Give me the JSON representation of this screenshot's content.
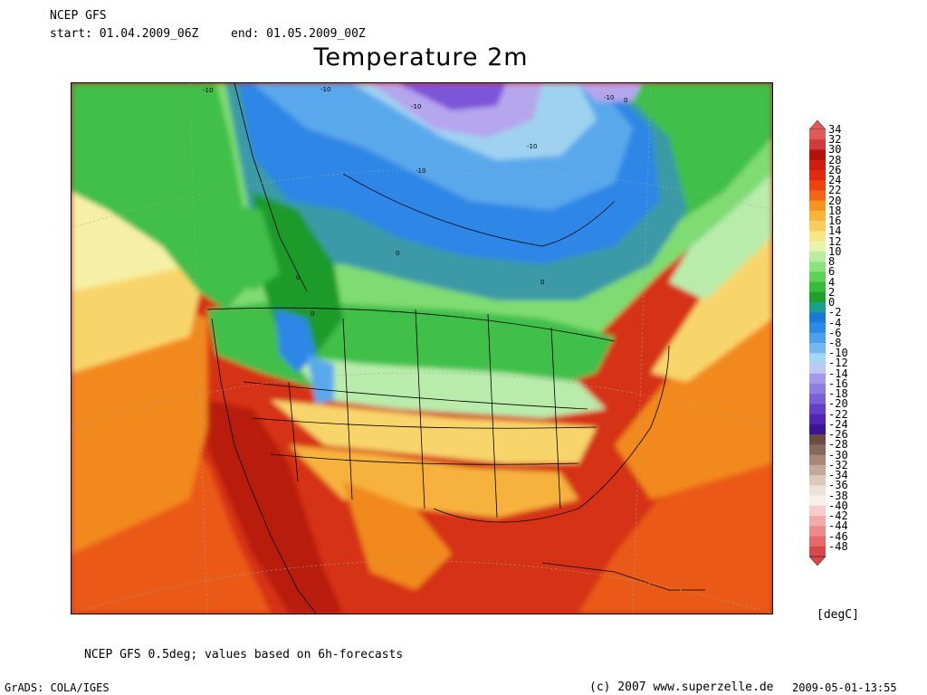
{
  "header": {
    "source": "NCEP GFS",
    "start_label": "start:",
    "start_value": "01.04.2009_06Z",
    "end_label": "end:",
    "end_value": "01.05.2009_00Z"
  },
  "title": "Temperature 2m",
  "map": {
    "contour_labels": [
      "-10",
      "-10",
      "-10",
      "-10",
      "-10",
      "-10",
      "0",
      "0",
      "0",
      "0",
      "0"
    ],
    "colors": {
      "deep_purple": "#7d55d8",
      "light_purple": "#b5a6ee",
      "pale_blue": "#9fd2f0",
      "blue": "#2f86e6",
      "mid_blue": "#5aa8ec",
      "teal": "#3a9aa6",
      "dark_green": "#1e9a2a",
      "green": "#3fbf48",
      "light_green": "#7fdc72",
      "pale_green": "#b9ecaa",
      "pale_yellow": "#f6f0a6",
      "yellow": "#f8d56a",
      "orange_light": "#f6b23c",
      "orange": "#f2891c",
      "red_orange": "#ea5a16",
      "red": "#d63314",
      "dark_red": "#b81d10"
    }
  },
  "legend": {
    "unit": "[degC]",
    "entries": [
      {
        "label": "34",
        "color": "#e05a5a"
      },
      {
        "label": "32",
        "color": "#cf3a3a"
      },
      {
        "label": "30",
        "color": "#b51010"
      },
      {
        "label": "28",
        "color": "#cd1e10"
      },
      {
        "label": "26",
        "color": "#e02a10"
      },
      {
        "label": "24",
        "color": "#ea4410"
      },
      {
        "label": "22",
        "color": "#f26418"
      },
      {
        "label": "20",
        "color": "#f5961c"
      },
      {
        "label": "18",
        "color": "#f7b43c"
      },
      {
        "label": "16",
        "color": "#f8cc5e"
      },
      {
        "label": "14",
        "color": "#f7e686"
      },
      {
        "label": "12",
        "color": "#e6f5a8"
      },
      {
        "label": "10",
        "color": "#b8eea2"
      },
      {
        "label": "8",
        "color": "#8ee27e"
      },
      {
        "label": "6",
        "color": "#5ed158"
      },
      {
        "label": "4",
        "color": "#34bb3c"
      },
      {
        "label": "2",
        "color": "#1ea02a"
      },
      {
        "label": "0",
        "color": "#19a08c"
      },
      {
        "label": "-2",
        "color": "#1c78d8"
      },
      {
        "label": "-4",
        "color": "#2a8ae4"
      },
      {
        "label": "-6",
        "color": "#4aa0ea"
      },
      {
        "label": "-8",
        "color": "#74b8ef"
      },
      {
        "label": "-10",
        "color": "#a4d6f4"
      },
      {
        "label": "-12",
        "color": "#bcc8f2"
      },
      {
        "label": "-14",
        "color": "#a69ae8"
      },
      {
        "label": "-16",
        "color": "#8e7ee0"
      },
      {
        "label": "-18",
        "color": "#7b5fd6"
      },
      {
        "label": "-20",
        "color": "#6440c8"
      },
      {
        "label": "-22",
        "color": "#5226b2"
      },
      {
        "label": "-24",
        "color": "#3c1690"
      },
      {
        "label": "-26",
        "color": "#6a4c44"
      },
      {
        "label": "-28",
        "color": "#88685c"
      },
      {
        "label": "-30",
        "color": "#a88678"
      },
      {
        "label": "-32",
        "color": "#c4a89a"
      },
      {
        "label": "-34",
        "color": "#dcc8bc"
      },
      {
        "label": "-36",
        "color": "#ece2da"
      },
      {
        "label": "-38",
        "color": "#f8f0e8"
      },
      {
        "label": "-40",
        "color": "#f6cccc"
      },
      {
        "label": "-42",
        "color": "#f0aaaa"
      },
      {
        "label": "-44",
        "color": "#ea8a8a"
      },
      {
        "label": "-46",
        "color": "#e26a6a"
      },
      {
        "label": "-48",
        "color": "#d84848"
      }
    ]
  },
  "footer": {
    "note": "NCEP GFS 0.5deg; values based on 6h-forecasts",
    "software": "GrADS: COLA/IGES",
    "copyright": "(c) 2007 www.superzelle.de",
    "timestamp": "2009-05-01-13:55"
  }
}
